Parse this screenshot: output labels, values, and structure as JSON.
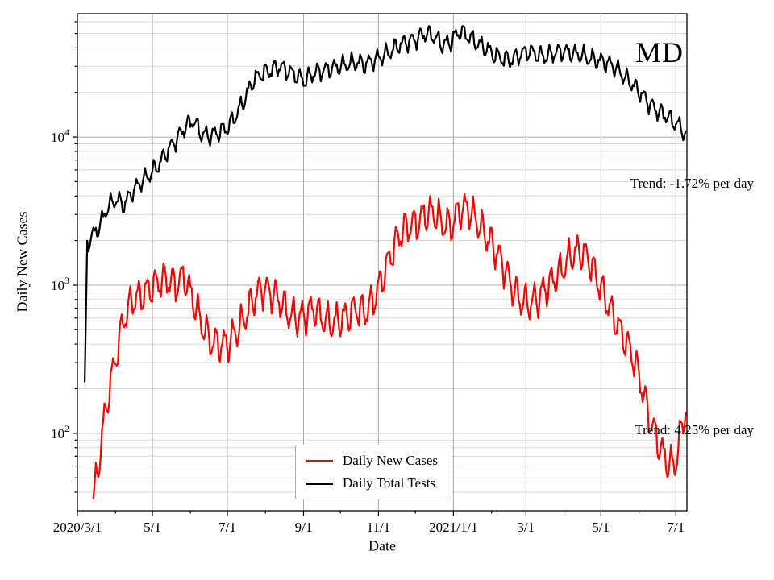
{
  "annotations": {
    "state": "MD"
  },
  "chart_data": {
    "type": "line",
    "title": "",
    "xlabel": "Date",
    "ylabel": "Daily New Cases",
    "yscale": "log",
    "ylim": [
      30,
      68000
    ],
    "grid": "both",
    "legend_position": "lower center",
    "x_start": "2020-03-01",
    "x_end": "2021-07-10",
    "x_ticks": [
      {
        "d": "2020-03-01",
        "label": "2020/3/1"
      },
      {
        "d": "2020-05-01",
        "label": "5/1"
      },
      {
        "d": "2020-07-01",
        "label": "7/1"
      },
      {
        "d": "2020-09-01",
        "label": "9/1"
      },
      {
        "d": "2020-11-01",
        "label": "11/1"
      },
      {
        "d": "2021-01-01",
        "label": "2021/1/1"
      },
      {
        "d": "2021-03-01",
        "label": "3/1"
      },
      {
        "d": "2021-05-01",
        "label": "5/1"
      },
      {
        "d": "2021-07-01",
        "label": "7/1"
      }
    ],
    "x_minor_ticks": [
      "2020-04-01",
      "2020-06-01",
      "2020-08-01",
      "2020-10-01",
      "2020-12-01",
      "2021-02-01",
      "2021-04-01",
      "2021-06-01"
    ],
    "y_ticks": [
      {
        "value": 100,
        "base": "10",
        "exp": "2"
      },
      {
        "value": 1000,
        "base": "10",
        "exp": "3"
      },
      {
        "value": 10000,
        "base": "10",
        "exp": "4"
      }
    ],
    "trend_annotations": [
      {
        "text": "Trend: -1.72% per day",
        "y": 4800
      },
      {
        "text": "Trend: 4.25% per day",
        "y": 103
      }
    ],
    "colors": {
      "cases": "#ff0000",
      "tests": "#000000",
      "grid_major": "#ababab",
      "grid_minor": "#d6d6d6"
    },
    "series": [
      {
        "name": "Daily New Cases",
        "color": "#ff0000",
        "osc": 0.1,
        "noise": 0.05,
        "phase": 1.1,
        "points": [
          [
            "2020-03-14",
            35
          ],
          [
            "2020-03-18",
            60
          ],
          [
            "2020-03-22",
            110
          ],
          [
            "2020-03-26",
            180
          ],
          [
            "2020-04-01",
            320
          ],
          [
            "2020-04-08",
            600
          ],
          [
            "2020-04-15",
            800
          ],
          [
            "2020-04-22",
            850
          ],
          [
            "2020-04-29",
            950
          ],
          [
            "2020-05-06",
            1050
          ],
          [
            "2020-05-13",
            1100
          ],
          [
            "2020-05-20",
            1000
          ],
          [
            "2020-05-27",
            1150
          ],
          [
            "2020-06-03",
            800
          ],
          [
            "2020-06-10",
            550
          ],
          [
            "2020-06-17",
            420
          ],
          [
            "2020-06-24",
            400
          ],
          [
            "2020-07-01",
            400
          ],
          [
            "2020-07-08",
            480
          ],
          [
            "2020-07-15",
            600
          ],
          [
            "2020-07-22",
            800
          ],
          [
            "2020-07-29",
            950
          ],
          [
            "2020-08-05",
            900
          ],
          [
            "2020-08-12",
            800
          ],
          [
            "2020-08-19",
            650
          ],
          [
            "2020-08-26",
            600
          ],
          [
            "2020-09-02",
            620
          ],
          [
            "2020-09-09",
            700
          ],
          [
            "2020-09-16",
            600
          ],
          [
            "2020-09-23",
            550
          ],
          [
            "2020-09-30",
            580
          ],
          [
            "2020-10-07",
            620
          ],
          [
            "2020-10-14",
            700
          ],
          [
            "2020-10-21",
            650
          ],
          [
            "2020-10-28",
            800
          ],
          [
            "2020-11-04",
            1100
          ],
          [
            "2020-11-11",
            1600
          ],
          [
            "2020-11-18",
            2200
          ],
          [
            "2020-11-25",
            2500
          ],
          [
            "2020-12-02",
            2600
          ],
          [
            "2020-12-09",
            3000
          ],
          [
            "2020-12-16",
            3100
          ],
          [
            "2020-12-23",
            2600
          ],
          [
            "2020-12-30",
            2500
          ],
          [
            "2021-01-06",
            3200
          ],
          [
            "2021-01-13",
            3300
          ],
          [
            "2021-01-20",
            2700
          ],
          [
            "2021-01-27",
            2200
          ],
          [
            "2021-02-03",
            1800
          ],
          [
            "2021-02-10",
            1400
          ],
          [
            "2021-02-17",
            1000
          ],
          [
            "2021-02-24",
            800
          ],
          [
            "2021-03-03",
            750
          ],
          [
            "2021-03-10",
            800
          ],
          [
            "2021-03-17",
            950
          ],
          [
            "2021-03-24",
            1100
          ],
          [
            "2021-03-31",
            1300
          ],
          [
            "2021-04-07",
            1600
          ],
          [
            "2021-04-14",
            1700
          ],
          [
            "2021-04-21",
            1500
          ],
          [
            "2021-04-28",
            1100
          ],
          [
            "2021-05-05",
            800
          ],
          [
            "2021-05-12",
            600
          ],
          [
            "2021-05-19",
            450
          ],
          [
            "2021-05-26",
            350
          ],
          [
            "2021-06-02",
            230
          ],
          [
            "2021-06-09",
            130
          ],
          [
            "2021-06-16",
            90
          ],
          [
            "2021-06-23",
            65
          ],
          [
            "2021-06-30",
            60
          ],
          [
            "2021-07-06",
            110
          ],
          [
            "2021-07-09",
            150
          ]
        ]
      },
      {
        "name": "Daily Total Tests",
        "color": "#000000",
        "osc": 0.05,
        "noise": 0.03,
        "phase": 2.3,
        "points": [
          [
            "2020-03-07",
            200
          ],
          [
            "2020-03-09",
            1900
          ],
          [
            "2020-03-12",
            2100
          ],
          [
            "2020-03-16",
            2300
          ],
          [
            "2020-03-20",
            2600
          ],
          [
            "2020-03-25",
            3300
          ],
          [
            "2020-04-01",
            3800
          ],
          [
            "2020-04-08",
            3500
          ],
          [
            "2020-04-15",
            4300
          ],
          [
            "2020-04-22",
            5000
          ],
          [
            "2020-04-29",
            5600
          ],
          [
            "2020-05-06",
            6500
          ],
          [
            "2020-05-13",
            8000
          ],
          [
            "2020-05-20",
            9500
          ],
          [
            "2020-05-27",
            11500
          ],
          [
            "2020-06-03",
            13000
          ],
          [
            "2020-06-10",
            10500
          ],
          [
            "2020-06-17",
            10200
          ],
          [
            "2020-06-24",
            10800
          ],
          [
            "2020-07-01",
            11500
          ],
          [
            "2020-07-08",
            14000
          ],
          [
            "2020-07-15",
            18000
          ],
          [
            "2020-07-22",
            24000
          ],
          [
            "2020-07-29",
            27000
          ],
          [
            "2020-08-05",
            28000
          ],
          [
            "2020-08-12",
            30000
          ],
          [
            "2020-08-19",
            28000
          ],
          [
            "2020-08-26",
            26000
          ],
          [
            "2020-09-02",
            24000
          ],
          [
            "2020-09-09",
            27000
          ],
          [
            "2020-09-16",
            28000
          ],
          [
            "2020-09-23",
            29000
          ],
          [
            "2020-09-30",
            30000
          ],
          [
            "2020-10-07",
            31000
          ],
          [
            "2020-10-14",
            32000
          ],
          [
            "2020-10-21",
            31000
          ],
          [
            "2020-10-28",
            33000
          ],
          [
            "2020-11-04",
            35000
          ],
          [
            "2020-11-11",
            38000
          ],
          [
            "2020-11-18",
            42000
          ],
          [
            "2020-11-25",
            44000
          ],
          [
            "2020-12-02",
            46000
          ],
          [
            "2020-12-09",
            50000
          ],
          [
            "2020-12-16",
            48000
          ],
          [
            "2020-12-23",
            42000
          ],
          [
            "2020-12-30",
            44000
          ],
          [
            "2021-01-06",
            52000
          ],
          [
            "2021-01-13",
            48000
          ],
          [
            "2021-01-20",
            43000
          ],
          [
            "2021-01-27",
            40000
          ],
          [
            "2021-02-03",
            36000
          ],
          [
            "2021-02-10",
            34000
          ],
          [
            "2021-02-17",
            33000
          ],
          [
            "2021-02-24",
            36000
          ],
          [
            "2021-03-03",
            38000
          ],
          [
            "2021-03-10",
            36000
          ],
          [
            "2021-03-17",
            35000
          ],
          [
            "2021-03-24",
            37000
          ],
          [
            "2021-03-31",
            38000
          ],
          [
            "2021-04-07",
            37000
          ],
          [
            "2021-04-14",
            36000
          ],
          [
            "2021-04-21",
            34000
          ],
          [
            "2021-04-28",
            33000
          ],
          [
            "2021-05-05",
            32000
          ],
          [
            "2021-05-12",
            30000
          ],
          [
            "2021-05-19",
            26000
          ],
          [
            "2021-05-26",
            23000
          ],
          [
            "2021-06-02",
            20000
          ],
          [
            "2021-06-09",
            17000
          ],
          [
            "2021-06-16",
            15000
          ],
          [
            "2021-06-23",
            14000
          ],
          [
            "2021-06-30",
            12500
          ],
          [
            "2021-07-06",
            11500
          ],
          [
            "2021-07-09",
            10000
          ]
        ]
      }
    ]
  }
}
